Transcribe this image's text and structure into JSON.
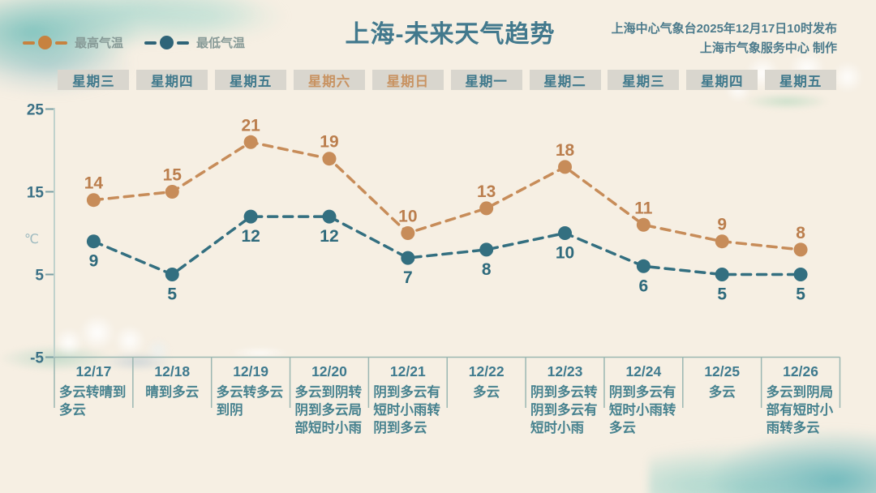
{
  "header": {
    "title": "上海-未来天气趋势",
    "issued_line1": "上海中心气象台2025年12月17日10时发布",
    "issued_line2": "上海市气象服务中心 制作"
  },
  "legend": {
    "high_label": "最高气温",
    "low_label": "最低气温"
  },
  "colors": {
    "background": "#f6efe3",
    "title": "#42798d",
    "high_series": "#c78c59",
    "high_value_label": "#bb7e4d",
    "low_series": "#336f80",
    "low_value_label": "#2e6a7c",
    "axis_line": "#c0d2cc",
    "table_line": "#9bb7b2",
    "tick_label": "#3b7186",
    "weekday_box_bg": "#d9d6ce",
    "weekday_text": "#40798c",
    "weekend_text": "#c89362",
    "date_text": "#3e7a8e",
    "desc_text": "#47828f"
  },
  "weekdays": [
    {
      "label": "星期三",
      "weekend": false
    },
    {
      "label": "星期四",
      "weekend": false
    },
    {
      "label": "星期五",
      "weekend": false
    },
    {
      "label": "星期六",
      "weekend": true
    },
    {
      "label": "星期日",
      "weekend": true
    },
    {
      "label": "星期一",
      "weekend": false
    },
    {
      "label": "星期二",
      "weekend": false
    },
    {
      "label": "星期三",
      "weekend": false
    },
    {
      "label": "星期四",
      "weekend": false
    },
    {
      "label": "星期五",
      "weekend": false
    }
  ],
  "chart_data": {
    "type": "line",
    "title": "上海-未来天气趋势",
    "categories": [
      "12/17",
      "12/18",
      "12/19",
      "12/20",
      "12/21",
      "12/22",
      "12/23",
      "12/24",
      "12/25",
      "12/26"
    ],
    "series": [
      {
        "name": "最高气温",
        "color": "#c78c59",
        "values": [
          14,
          15,
          21,
          19,
          10,
          13,
          18,
          11,
          9,
          8
        ]
      },
      {
        "name": "最低气温",
        "color": "#336f80",
        "values": [
          9,
          5,
          12,
          12,
          7,
          8,
          10,
          6,
          5,
          5
        ]
      }
    ],
    "ylabel": "℃",
    "yticks": [
      25,
      15,
      5,
      -5
    ],
    "ylim": [
      -5,
      25
    ],
    "grid": false,
    "legend_position": "top-left",
    "line_style": "dashed",
    "descriptions": [
      "多云转晴到多云",
      "晴到多云",
      "多云转多云到阴",
      "多云到阴转阴到多云局部短时小雨",
      "阴到多云有短时小雨转阴到多云",
      "多云",
      "阴到多云转阴到多云有短时小雨",
      "阴到多云有短时小雨转多云",
      "多云",
      "多云到阴局部有短时小雨转多云"
    ]
  }
}
